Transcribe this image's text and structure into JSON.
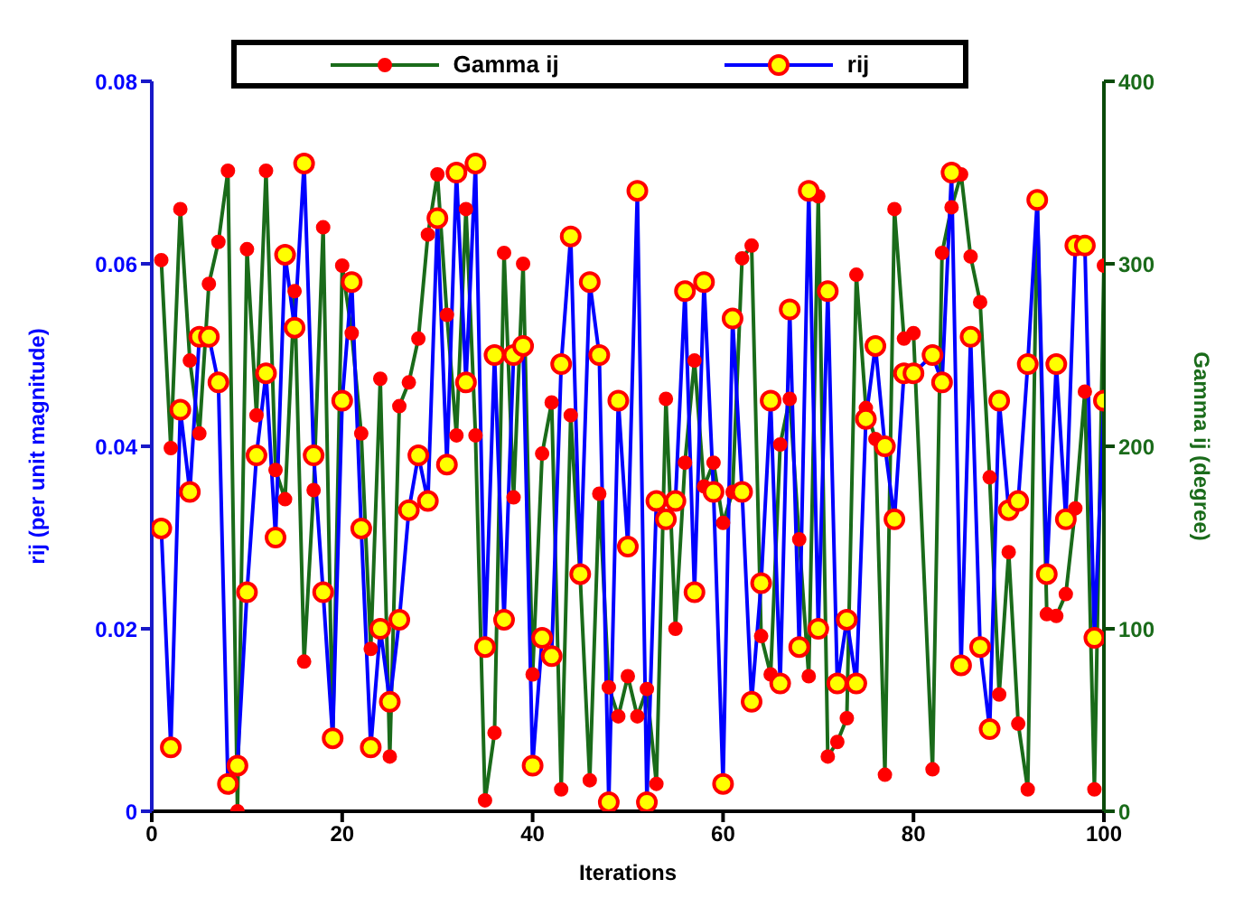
{
  "chart_data": {
    "type": "line",
    "xlabel": "Iterations",
    "ylabel": "rij (per unit magnitude)",
    "y2label": "Gamma ij (degree)",
    "x": [
      1,
      2,
      3,
      4,
      5,
      6,
      7,
      8,
      9,
      10,
      11,
      12,
      13,
      14,
      15,
      16,
      17,
      18,
      19,
      20,
      21,
      22,
      23,
      24,
      25,
      26,
      27,
      28,
      29,
      30,
      31,
      32,
      33,
      34,
      35,
      36,
      37,
      38,
      39,
      40,
      41,
      42,
      43,
      44,
      45,
      46,
      47,
      48,
      49,
      50,
      51,
      52,
      53,
      54,
      55,
      56,
      57,
      58,
      59,
      60,
      61,
      62,
      63,
      64,
      65,
      66,
      67,
      68,
      69,
      70,
      71,
      72,
      73,
      74,
      75,
      76,
      77,
      78,
      79,
      80,
      82,
      83,
      84,
      85,
      86,
      87,
      88,
      89,
      90,
      91,
      92,
      93,
      94,
      95,
      96,
      97,
      98,
      99,
      100
    ],
    "series": [
      {
        "name": "Gamma ij",
        "color": "#1a6b1a",
        "axis": "y2",
        "values": [
          302,
          199,
          330,
          247,
          207,
          289,
          312,
          351,
          0,
          308,
          217,
          351,
          187,
          171,
          285,
          82,
          176,
          320,
          39,
          299,
          262,
          207,
          89,
          237,
          30,
          222,
          235,
          259,
          316,
          349,
          272,
          206,
          330,
          206,
          6,
          43,
          306,
          172,
          300,
          75,
          196,
          224,
          12,
          217,
          128,
          17,
          174,
          68,
          52,
          74,
          52,
          67,
          15,
          226,
          100,
          191,
          247,
          178,
          191,
          158,
          175,
          303,
          310,
          96,
          75,
          201,
          226,
          149,
          74,
          337,
          30,
          38,
          51,
          294,
          221,
          204,
          20,
          330,
          259,
          262,
          23,
          306,
          331,
          349,
          304,
          279,
          183,
          64,
          142,
          48,
          12,
          333,
          108,
          107,
          119,
          166,
          230,
          12,
          299
        ]
      },
      {
        "name": "rij",
        "color": "#0000ff",
        "values": [
          0.031,
          0.007,
          0.044,
          0.035,
          0.052,
          0.052,
          0.047,
          0.003,
          0.005,
          0.024,
          0.039,
          0.048,
          0.03,
          0.061,
          0.053,
          0.071,
          0.039,
          0.024,
          0.008,
          0.045,
          0.058,
          0.031,
          0.007,
          0.02,
          0.012,
          0.021,
          0.033,
          0.039,
          0.034,
          0.065,
          0.038,
          0.07,
          0.047,
          0.071,
          0.018,
          0.05,
          0.021,
          0.05,
          0.051,
          0.005,
          0.019,
          0.017,
          0.049,
          0.063,
          0.026,
          0.058,
          0.05,
          0.001,
          0.045,
          0.029,
          0.068,
          0.001,
          0.034,
          0.032,
          0.034,
          0.057,
          0.024,
          0.058,
          0.035,
          0.003,
          0.054,
          0.035,
          0.012,
          0.025,
          0.045,
          0.014,
          0.055,
          0.018,
          0.068,
          0.02,
          0.057,
          0.014,
          0.021,
          0.014,
          0.043,
          0.051,
          0.04,
          0.032,
          0.048,
          0.048,
          0.05,
          0.047,
          0.07,
          0.016,
          0.052,
          0.018,
          0.009,
          0.045,
          0.033,
          0.034,
          0.049,
          0.067,
          0.026,
          0.049,
          0.032,
          0.062,
          0.062,
          0.019,
          0.045
        ]
      }
    ],
    "xlim": [
      0,
      100
    ],
    "xticks": [
      0,
      20,
      40,
      60,
      80,
      100
    ],
    "ylim": [
      0,
      0.08
    ],
    "yticks": [
      0,
      0.02,
      0.04,
      0.06,
      0.08
    ],
    "y2lim": [
      0,
      400
    ],
    "y2ticks": [
      0,
      100,
      200,
      300,
      400
    ],
    "legend": "top",
    "marker": "circle",
    "grid": false
  }
}
